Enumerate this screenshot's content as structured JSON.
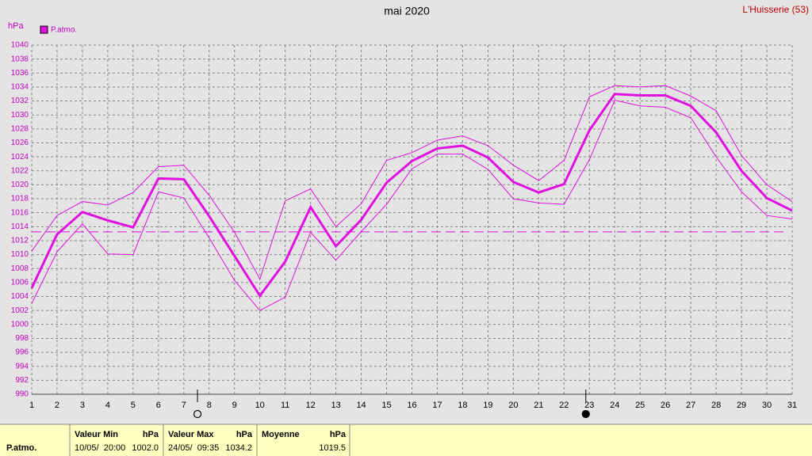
{
  "chart_data": {
    "type": "line",
    "title": "mai 2020",
    "station": "L'Huisserie (53)",
    "y_unit": "hPa",
    "x": [
      1,
      2,
      3,
      4,
      5,
      6,
      7,
      8,
      9,
      10,
      11,
      12,
      13,
      14,
      15,
      16,
      17,
      18,
      19,
      20,
      21,
      22,
      23,
      24,
      25,
      26,
      27,
      28,
      29,
      30,
      31
    ],
    "series": [
      {
        "name": "P.atmo.",
        "color": "#e010e0",
        "width": 3,
        "values": [
          1005.2,
          1012.9,
          1016.1,
          1014.9,
          1013.9,
          1020.9,
          1020.8,
          1015.5,
          1009.8,
          1004.1,
          1009,
          1016.8,
          1011.2,
          1015,
          1020.3,
          1023.4,
          1025.2,
          1025.6,
          1023.9,
          1020.4,
          1018.9,
          1020.1,
          1027.8,
          1033,
          1032.8,
          1032.8,
          1031.3,
          1027.5,
          1022,
          1018.1,
          1016.3
        ]
      },
      {
        "color": "#e010e0",
        "width": 1,
        "values": [
          1010.5,
          1015.6,
          1017.6,
          1017.1,
          1018.9,
          1022.6,
          1022.8,
          1018.5,
          1013.2,
          1006.5,
          1017.7,
          1019.4,
          1014,
          1017.3,
          1023.5,
          1024.6,
          1026.4,
          1027,
          1025.6,
          1022.8,
          1020.6,
          1023.5,
          1032.6,
          1034.2,
          1034,
          1034.2,
          1032.7,
          1030.6,
          1024.2,
          1020,
          1017.6
        ]
      },
      {
        "color": "#e010e0",
        "width": 1,
        "values": [
          1003,
          1010.4,
          1014.4,
          1010.1,
          1010,
          1019,
          1018.1,
          1012.4,
          1006.3,
          1002,
          1003.9,
          1013.2,
          1009.2,
          1013.3,
          1017.2,
          1022.3,
          1024.4,
          1024.4,
          1022.2,
          1018,
          1017.4,
          1017.2,
          1023.6,
          1032.1,
          1031.3,
          1031.1,
          1029.6,
          1024,
          1019,
          1015.6,
          1015.1
        ]
      }
    ],
    "reference_line": 1013.25,
    "moon_phases": [
      {
        "x": 7.54,
        "phase": "full"
      },
      {
        "x": 22.86,
        "phase": "new"
      }
    ],
    "xlim": [
      1,
      31
    ],
    "xticks": [
      1,
      2,
      3,
      4,
      5,
      6,
      7,
      8,
      9,
      10,
      11,
      12,
      13,
      14,
      15,
      16,
      17,
      18,
      19,
      20,
      21,
      22,
      23,
      24,
      25,
      26,
      27,
      28,
      29,
      30,
      31
    ],
    "ylim": [
      990,
      1040
    ],
    "yticks": [
      990,
      992,
      994,
      996,
      998,
      1000,
      1002,
      1004,
      1006,
      1008,
      1010,
      1012,
      1014,
      1016,
      1018,
      1020,
      1022,
      1024,
      1026,
      1028,
      1030,
      1032,
      1034,
      1036,
      1038,
      1040
    ],
    "grid": true
  },
  "table": {
    "label": "P.atmo.",
    "columns": [
      {
        "header": "Valeur Min",
        "unit": "hPa",
        "when": "10/05/  20:00",
        "value": "1002.0"
      },
      {
        "header": "Valeur Max",
        "unit": "hPa",
        "when": "24/05/  09:35",
        "value": "1034.2"
      },
      {
        "header": "Moyenne",
        "unit": "hPa",
        "value": "1019.5"
      }
    ]
  }
}
